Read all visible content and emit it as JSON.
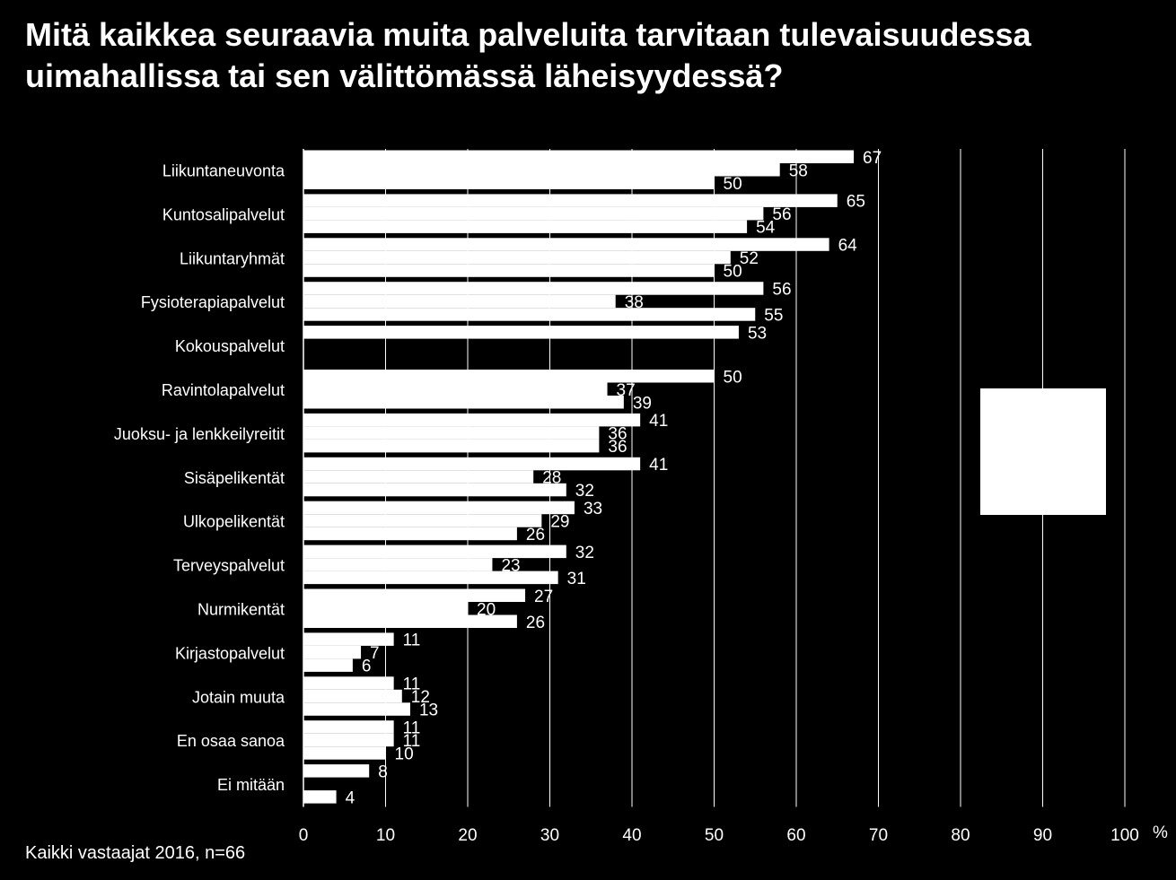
{
  "title": {
    "line1": "Mitä kaikkea seuraavia muita palveluita tarvitaan tulevaisuudessa",
    "line2": "uimahallissa tai sen välittömässä läheisyydessä?"
  },
  "footnote": "Kaikki vastaajat 2016, n=66",
  "chart_data": {
    "type": "bar",
    "orientation": "horizontal",
    "categories": [
      "Liikuntaneuvonta",
      "Kuntosalipalvelut",
      "Liikuntaryhmät",
      "Fysioterapiapalvelut",
      "Kokouspalvelut",
      "Ravintolapalvelut",
      "Juoksu- ja lenkkeilyreitit",
      "Sisäpelikentät",
      "Ulkopelikentät",
      "Terveyspalvelut",
      "Nurmikentät",
      "Kirjastopalvelut",
      "Jotain muuta",
      "En osaa sanoa",
      "Ei mitään"
    ],
    "series": [
      {
        "values": [
          67,
          65,
          64,
          56,
          53,
          50,
          41,
          41,
          33,
          32,
          27,
          11,
          11,
          11,
          8
        ]
      },
      {
        "values": [
          58,
          56,
          52,
          38,
          null,
          37,
          36,
          28,
          29,
          23,
          20,
          7,
          12,
          11,
          null
        ]
      },
      {
        "values": [
          50,
          54,
          50,
          55,
          null,
          39,
          36,
          32,
          26,
          31,
          26,
          6,
          13,
          10,
          4
        ]
      }
    ],
    "xlim": [
      0,
      100
    ],
    "xticks": [
      0,
      10,
      20,
      30,
      40,
      50,
      60,
      70,
      80,
      90,
      100
    ],
    "unit_label": "%",
    "grid": "vertical",
    "legend": "right (blank box)",
    "colors": {
      "background": "#000000",
      "bars": "#ffffff",
      "text": "#ffffff"
    }
  }
}
